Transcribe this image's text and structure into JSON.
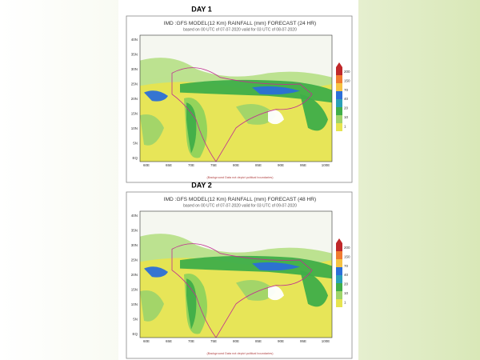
{
  "panels": [
    {
      "label": "DAY 1",
      "title": "IMD :GFS MODEL(12 Km) RAINFALL (mm) FORECAST (24 HR)",
      "subtitle": "based on 00 UTC of 07-07-2020 valid for 03 UTC of 08-07-2020",
      "footnote": "(Background Data not depict political boundaries)"
    },
    {
      "label": "DAY 2",
      "title": "IMD :GFS MODEL(12 Km) RAINFALL (mm) FORECAST (48 HR)",
      "subtitle": "based on 00 UTC of 07-07-2020 valid for 03 UTC of 09-07-2020",
      "footnote": "(Background Data not depict political boundaries)"
    }
  ],
  "latitude_labels": [
    "40N",
    "35N",
    "30N",
    "25N",
    "20N",
    "15N",
    "10N",
    "5N",
    "EQ"
  ],
  "longitude_labels": [
    "60E",
    "65E",
    "70E",
    "75E",
    "80E",
    "85E",
    "90E",
    "95E",
    "100E"
  ],
  "legend_labels": [
    "200",
    "150",
    "70",
    "40",
    "20",
    "10",
    "1"
  ]
}
